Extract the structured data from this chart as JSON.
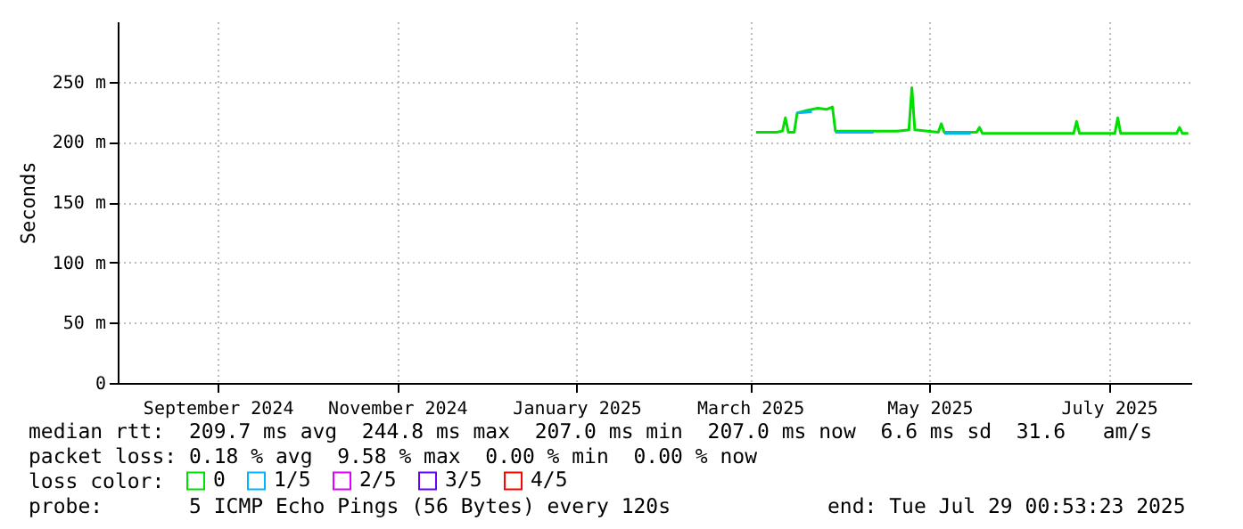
{
  "chart_data": {
    "type": "line",
    "ylabel": "Seconds",
    "xlim": [
      "2024-07-29",
      "2025-07-29"
    ],
    "xticks": [
      {
        "value": "2024-09-01",
        "label": "September 2024"
      },
      {
        "value": "2024-11-01",
        "label": "November 2024"
      },
      {
        "value": "2025-01-01",
        "label": "January 2025"
      },
      {
        "value": "2025-03-01",
        "label": "March 2025"
      },
      {
        "value": "2025-05-01",
        "label": "May 2025"
      },
      {
        "value": "2025-07-01",
        "label": "July 2025"
      }
    ],
    "ylim": [
      0,
      300
    ],
    "yticks": [
      0,
      {
        "value": 50,
        "label": "50 m"
      },
      {
        "value": 100,
        "label": "100 m"
      },
      {
        "value": 150,
        "label": "150 m"
      },
      {
        "value": 200,
        "label": "200 m"
      },
      {
        "value": 250,
        "label": "250 m"
      }
    ],
    "grid": true,
    "legend": "bottom left",
    "marker": "none",
    "line_style": "solid",
    "series": [
      {
        "name": "0",
        "color": "#00e000",
        "x": [
          "2025-03-03",
          "2025-03-10",
          "2025-03-12",
          "2025-03-13",
          "2025-03-14",
          "2025-03-16",
          "2025-03-17",
          "2025-03-20",
          "2025-03-24",
          "2025-03-27",
          "2025-03-29",
          "2025-03-30",
          "2025-04-10",
          "2025-04-20",
          "2025-04-24",
          "2025-04-25",
          "2025-04-26",
          "2025-05-04",
          "2025-05-05",
          "2025-05-06",
          "2025-05-17",
          "2025-05-18",
          "2025-05-19",
          "2025-06-01",
          "2025-06-10",
          "2025-06-19",
          "2025-06-20",
          "2025-06-21",
          "2025-07-03",
          "2025-07-04",
          "2025-07-05",
          "2025-07-15",
          "2025-07-24",
          "2025-07-25",
          "2025-07-26",
          "2025-07-28"
        ],
        "values": [
          208,
          208,
          209,
          220,
          208,
          208,
          224,
          226,
          228,
          227,
          229,
          209,
          209,
          209,
          210,
          245,
          210,
          208,
          215,
          208,
          208,
          212,
          207,
          207,
          207,
          207,
          217,
          207,
          207,
          220,
          207,
          207,
          207,
          212,
          207,
          207
        ]
      },
      {
        "name": "1/5",
        "color": "#00b4ff",
        "x": [
          "2025-03-17",
          "2025-03-22",
          "2025-03-23",
          "2025-03-30",
          "2025-04-12",
          "2025-04-13",
          "2025-05-06",
          "2025-05-15"
        ],
        "values": [
          224,
          225,
          null,
          208,
          208,
          null,
          207,
          207
        ]
      },
      {
        "name": "2/5",
        "color": "#dd00ff"
      },
      {
        "name": "3/5",
        "color": "#6600ff"
      },
      {
        "name": "4/5",
        "color": "#ff0000"
      }
    ],
    "annotations": [
      "median rtt:  209.7 ms avg  244.8 ms max  207.0 ms min  207.0 ms now  6.6 ms sd  31.6   am/s",
      "packet loss: 0.18 % avg  9.58 % max  0.00 % min  0.00 % now",
      "loss color:",
      "probe:       5 ICMP Echo Pings (56 Bytes) every 120s",
      "end: Tue Jul 29 00:53:23 2025"
    ]
  }
}
